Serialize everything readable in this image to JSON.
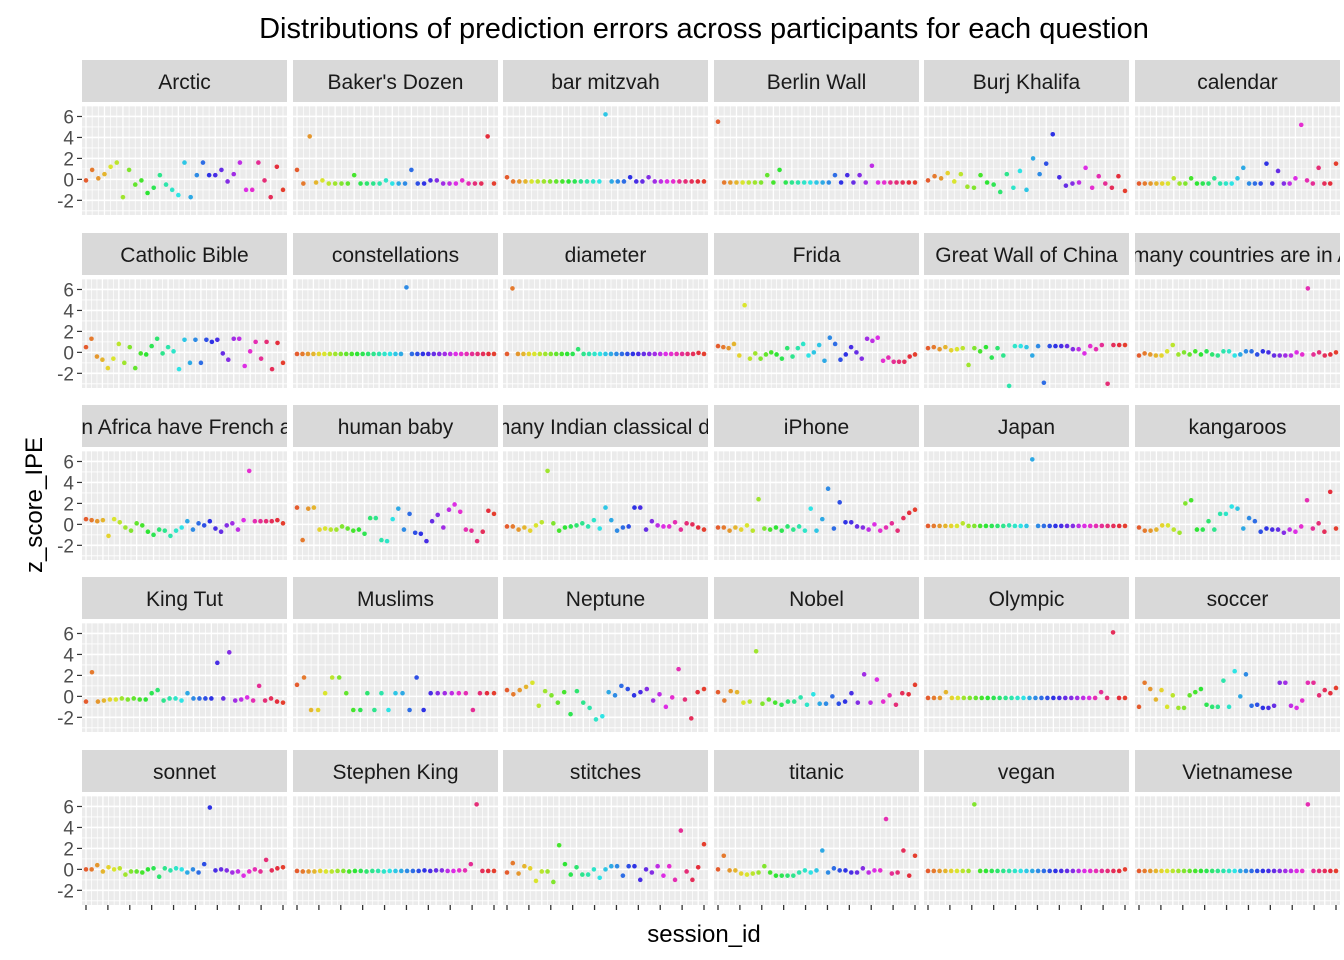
{
  "chart_data": {
    "type": "scatter",
    "title": "Distributions of prediction errors across participants for each question",
    "xlabel": "session_id",
    "ylabel": "z_score_IPE",
    "y_ticks": [
      6,
      4,
      2,
      0,
      -2
    ],
    "y_tick_labels": [
      "6",
      "4",
      "2",
      "0",
      "-2"
    ],
    "ylim": [
      -3.4,
      7.0
    ],
    "grid": true,
    "legend": "none",
    "facet_columns": 6,
    "colors": {
      "panel_bg": "#ebebeb",
      "grid": "#ffffff",
      "strip_bg": "#d9d9d9",
      "point_palette_start": "#f8766d",
      "point_palette_end": "#ff61c3"
    },
    "panels": [
      {
        "label": "Arctic",
        "y": [
          -0.1,
          0.9,
          0.1,
          0.5,
          1.2,
          1.6,
          -1.7,
          0.9,
          -0.5,
          -0.1,
          -1.3,
          -0.8,
          0.4,
          -0.5,
          -1.0,
          -1.5,
          1.6,
          -1.7,
          0.4,
          1.6,
          0.4,
          0.4,
          0.9,
          -0.2,
          0.5,
          1.6,
          -1.0,
          -1.0,
          1.6,
          -0.1,
          -1.7,
          1.2,
          -1.0
        ]
      },
      {
        "label": "Baker's Dozen",
        "y": [
          0.9,
          -0.4,
          4.1,
          -0.3,
          -0.1,
          -0.4,
          -0.4,
          -0.4,
          -0.4,
          0.4,
          -0.4,
          -0.4,
          -0.4,
          -0.4,
          -0.1,
          -0.4,
          -0.4,
          -0.4,
          0.9,
          -0.4,
          -0.4,
          -0.1,
          -0.1,
          -0.4,
          -0.4,
          -0.4,
          -0.1,
          -0.4,
          -0.4,
          -0.4,
          4.1,
          -0.4
        ]
      },
      {
        "label": "bar mitzvah",
        "y": [
          0.2,
          -0.2,
          -0.2,
          -0.2,
          -0.2,
          -0.2,
          -0.2,
          -0.2,
          -0.2,
          -0.2,
          -0.2,
          -0.2,
          -0.2,
          -0.2,
          -0.2,
          -0.2,
          6.2,
          -0.2,
          -0.2,
          -0.2,
          0.2,
          -0.2,
          -0.2,
          0.2,
          -0.2,
          -0.2,
          -0.2,
          -0.2,
          -0.2,
          -0.2,
          -0.2,
          -0.2,
          -0.2
        ]
      },
      {
        "label": "Berlin Wall",
        "y": [
          5.5,
          -0.3,
          -0.3,
          -0.3,
          -0.3,
          -0.3,
          -0.3,
          -0.3,
          0.4,
          -0.3,
          0.9,
          -0.3,
          -0.3,
          -0.3,
          -0.3,
          -0.3,
          -0.3,
          -0.3,
          -0.3,
          0.4,
          -0.3,
          0.4,
          -0.3,
          0.4,
          -0.3,
          1.3,
          -0.3,
          -0.3,
          -0.3,
          -0.3,
          -0.3,
          -0.3,
          -0.3
        ]
      },
      {
        "label": "Burj Khalifa",
        "y": [
          -0.1,
          0.3,
          0.1,
          0.6,
          -0.2,
          0.5,
          -0.7,
          -0.8,
          0.4,
          -0.3,
          -0.5,
          -1.2,
          0.5,
          -0.8,
          0.8,
          -1.0,
          2.0,
          0.5,
          1.5,
          4.3,
          0.2,
          -0.6,
          -0.4,
          -0.3,
          1.1,
          -0.8,
          0.3,
          -0.4,
          -0.8,
          0.3,
          -1.1
        ]
      },
      {
        "label": "calendar",
        "y": [
          -0.4,
          -0.4,
          -0.4,
          -0.4,
          -0.4,
          -0.4,
          0.1,
          -0.4,
          -0.4,
          0.1,
          -0.4,
          -0.4,
          -0.4,
          0.1,
          -0.4,
          -0.4,
          -0.4,
          0.1,
          1.1,
          -0.4,
          -0.4,
          -0.4,
          1.5,
          -0.4,
          0.8,
          -0.4,
          -0.4,
          0.1,
          5.2,
          -0.1,
          -0.4,
          1.1,
          -0.4,
          -0.4,
          1.5
        ]
      },
      {
        "label": "Catholic Bible",
        "y": [
          0.5,
          1.3,
          -0.4,
          -0.7,
          -1.5,
          -0.6,
          0.8,
          -1.0,
          0.5,
          -1.5,
          -0.1,
          -0.2,
          0.6,
          1.3,
          -0.1,
          0.5,
          0.1,
          -1.6,
          1.2,
          -1.0,
          1.2,
          -1.0,
          1.2,
          1.0,
          1.2,
          -0.1,
          -0.7,
          1.3,
          1.3,
          -1.3,
          0.1,
          1.0,
          -0.6,
          1.0,
          -1.6,
          0.9,
          -1.0
        ]
      },
      {
        "label": "constellations",
        "y": [
          -0.15,
          -0.15,
          -0.15,
          -0.15,
          -0.15,
          -0.15,
          -0.15,
          -0.15,
          -0.15,
          -0.15,
          -0.15,
          -0.15,
          -0.15,
          -0.15,
          -0.15,
          -0.15,
          -0.15,
          -0.15,
          -0.15,
          -0.15,
          6.2,
          -0.15,
          -0.15,
          -0.15,
          -0.15,
          -0.15,
          -0.15,
          -0.15,
          -0.15,
          -0.15,
          -0.15,
          -0.15,
          -0.15,
          -0.15,
          -0.15,
          -0.15,
          -0.15
        ]
      },
      {
        "label": "diameter",
        "y": [
          -0.15,
          6.1,
          -0.15,
          -0.15,
          -0.15,
          -0.15,
          -0.15,
          -0.15,
          -0.15,
          -0.15,
          -0.15,
          -0.15,
          -0.15,
          0.3,
          -0.15,
          -0.15,
          -0.15,
          -0.15,
          -0.15,
          -0.15,
          -0.15,
          -0.15,
          -0.15,
          -0.15,
          -0.15,
          -0.15,
          -0.15,
          -0.15,
          -0.15,
          -0.15,
          -0.15,
          -0.15,
          -0.15,
          -0.15,
          -0.15,
          -0.05,
          -0.15
        ]
      },
      {
        "label": "Frida",
        "y": [
          0.6,
          0.5,
          0.4,
          0.8,
          -0.3,
          4.5,
          -0.6,
          -0.1,
          -0.6,
          -0.2,
          0.0,
          -0.2,
          -0.6,
          0.4,
          -0.4,
          0.4,
          0.8,
          -0.3,
          0.0,
          0.7,
          -0.8,
          1.4,
          0.8,
          -0.7,
          -0.2,
          0.5,
          0.0,
          -0.6,
          1.3,
          1.1,
          1.4,
          -0.8,
          -0.5,
          -0.9,
          -0.9,
          -0.9,
          -0.4,
          -0.2
        ]
      },
      {
        "label": "Great Wall of China",
        "y": [
          0.4,
          0.5,
          0.3,
          0.5,
          0.2,
          0.3,
          0.4,
          -1.2,
          0.4,
          0.1,
          0.5,
          -0.5,
          0.4,
          -0.3,
          -3.2,
          0.6,
          0.6,
          0.5,
          -0.3,
          0.6,
          -2.9,
          0.6,
          0.6,
          0.6,
          0.6,
          0.3,
          0.3,
          -0.1,
          0.6,
          0.3,
          0.7,
          -3.0,
          0.7,
          0.7,
          0.7
        ]
      },
      {
        "label": "How many countries are in Africa",
        "y": [
          -0.3,
          -0.1,
          -0.2,
          -0.3,
          -0.3,
          0.1,
          0.7,
          -0.2,
          0.0,
          -0.2,
          0.1,
          -0.2,
          0.1,
          -0.2,
          -0.3,
          0.1,
          0.1,
          -0.3,
          -0.2,
          0.1,
          0.1,
          -0.2,
          0.1,
          0.0,
          -0.3,
          -0.3,
          -0.3,
          -0.3,
          0.0,
          -0.2,
          6.1,
          -0.2,
          0.0,
          -0.3,
          -0.2,
          0.0
        ]
      },
      {
        "label": "How many countries in Africa have French as an official language",
        "y": [
          0.5,
          0.4,
          0.3,
          0.4,
          -1.1,
          0.5,
          0.2,
          -0.3,
          -0.6,
          0.1,
          -0.1,
          -0.7,
          -1.0,
          -0.5,
          -0.6,
          -1.1,
          -0.6,
          -0.3,
          0.3,
          -0.5,
          0.1,
          -0.1,
          0.3,
          -0.4,
          -0.7,
          -0.1,
          0.1,
          -0.5,
          0.4,
          5.1,
          0.3,
          0.3,
          0.3,
          0.3,
          0.4,
          0.1
        ]
      },
      {
        "label": "human baby",
        "y": [
          1.6,
          -1.5,
          1.5,
          1.6,
          -0.5,
          -0.4,
          -0.5,
          -0.5,
          -0.2,
          -0.4,
          -0.6,
          -0.5,
          -0.9,
          0.6,
          0.6,
          -1.5,
          -1.6,
          0.5,
          1.5,
          -0.5,
          1.0,
          -0.8,
          -0.9,
          -1.6,
          0.3,
          0.9,
          -0.3,
          1.4,
          1.9,
          1.2,
          -0.5,
          -0.6,
          -1.6,
          -0.7,
          1.3,
          1.0
        ]
      },
      {
        "label": "How many Indian classical dances",
        "y": [
          -0.2,
          -0.2,
          -0.5,
          -0.3,
          -0.6,
          -0.1,
          0.2,
          5.1,
          0.1,
          -0.6,
          -0.3,
          -0.2,
          -0.1,
          0.1,
          -0.2,
          0.4,
          -0.4,
          1.6,
          0.4,
          -0.6,
          -0.3,
          -0.2,
          1.6,
          1.6,
          -0.5,
          0.3,
          -0.1,
          -0.2,
          -0.2,
          0.2,
          -0.5,
          0.1,
          0.0,
          -0.3,
          -0.5
        ]
      },
      {
        "label": "iPhone",
        "y": [
          -0.3,
          -0.3,
          -0.6,
          -0.3,
          -0.5,
          -0.1,
          -0.6,
          2.4,
          -0.4,
          -0.5,
          -0.3,
          -0.6,
          -0.2,
          -0.5,
          -0.2,
          -0.6,
          1.5,
          -0.6,
          0.5,
          3.4,
          -0.4,
          2.1,
          0.2,
          0.2,
          -0.2,
          -0.3,
          -0.5,
          0.0,
          -0.6,
          -0.3,
          0.1,
          -0.6,
          0.6,
          1.1,
          1.4
        ]
      },
      {
        "label": "Japan",
        "y": [
          -0.15,
          -0.15,
          -0.15,
          -0.15,
          -0.15,
          -0.15,
          0.1,
          -0.15,
          -0.15,
          -0.15,
          -0.15,
          -0.15,
          -0.15,
          -0.15,
          -0.1,
          -0.15,
          -0.15,
          -0.15,
          6.2,
          -0.15,
          -0.15,
          -0.15,
          -0.15,
          -0.15,
          -0.15,
          -0.15,
          -0.15,
          -0.15,
          -0.15,
          -0.15,
          -0.15,
          -0.15,
          -0.15,
          -0.15,
          -0.15
        ]
      },
      {
        "label": "kangaroos",
        "y": [
          -0.3,
          -0.6,
          -0.6,
          -0.5,
          -0.1,
          -0.1,
          -0.5,
          -0.8,
          2.0,
          2.3,
          -0.5,
          -0.5,
          0.3,
          -0.5,
          1.0,
          1.0,
          1.7,
          1.5,
          -0.4,
          0.6,
          0.3,
          -0.7,
          -0.4,
          -0.5,
          -0.5,
          -0.8,
          -0.5,
          -0.7,
          -0.2,
          2.3,
          -0.4,
          0.1,
          -0.7,
          3.1,
          -0.4
        ]
      },
      {
        "label": "King Tut",
        "y": [
          -0.5,
          2.3,
          -0.5,
          -0.4,
          -0.3,
          -0.3,
          -0.2,
          -0.3,
          -0.2,
          -0.3,
          -0.3,
          0.3,
          0.6,
          -0.4,
          -0.2,
          -0.2,
          -0.4,
          0.3,
          -0.2,
          -0.2,
          -0.2,
          -0.2,
          3.2,
          -0.2,
          4.2,
          -0.4,
          -0.3,
          -0.1,
          -0.4,
          1.0,
          -0.4,
          -0.2,
          -0.5,
          -0.6
        ]
      },
      {
        "label": "Muslims",
        "y": [
          1.1,
          1.8,
          -1.3,
          -1.3,
          0.3,
          1.8,
          1.8,
          0.3,
          -1.3,
          -1.3,
          0.3,
          -1.3,
          0.3,
          -1.3,
          0.3,
          0.3,
          -1.3,
          1.8,
          -1.3,
          0.3,
          0.3,
          0.3,
          0.3,
          0.3,
          0.3,
          -1.3,
          0.3,
          0.3,
          0.3
        ]
      },
      {
        "label": "Neptune",
        "y": [
          0.6,
          0.2,
          0.6,
          0.9,
          1.3,
          -0.9,
          0.5,
          0.1,
          -0.6,
          0.4,
          -1.7,
          0.5,
          -0.6,
          -1.1,
          -2.2,
          -1.9,
          0.4,
          0.1,
          1.0,
          0.7,
          0.1,
          0.4,
          0.7,
          -0.4,
          0.2,
          -1.0,
          -0.1,
          2.6,
          -0.3,
          -2.1,
          0.4,
          0.7
        ]
      },
      {
        "label": "Nobel",
        "y": [
          0.4,
          -0.4,
          0.5,
          0.4,
          -0.6,
          -0.5,
          4.3,
          -0.7,
          -0.3,
          -0.6,
          -0.8,
          -0.5,
          -0.5,
          -0.1,
          -0.8,
          0.2,
          -0.7,
          -0.7,
          0.0,
          -0.7,
          -0.5,
          0.3,
          -0.6,
          2.1,
          -0.6,
          1.6,
          -0.5,
          0.1,
          -0.8,
          0.3,
          0.2,
          1.1
        ]
      },
      {
        "label": "Olympic",
        "y": [
          -0.15,
          -0.15,
          -0.15,
          0.4,
          -0.15,
          -0.15,
          -0.15,
          -0.15,
          -0.15,
          -0.15,
          -0.15,
          -0.15,
          -0.15,
          -0.15,
          -0.15,
          -0.15,
          -0.15,
          -0.15,
          -0.15,
          -0.15,
          -0.15,
          -0.15,
          -0.15,
          -0.15,
          -0.15,
          -0.15,
          -0.15,
          -0.15,
          -0.15,
          0.4,
          -0.15,
          6.1,
          -0.15,
          -0.15
        ]
      },
      {
        "label": "soccer",
        "y": [
          -1.0,
          1.3,
          0.7,
          -0.3,
          0.6,
          -1.0,
          0.1,
          -1.1,
          -1.1,
          0.1,
          0.4,
          0.7,
          -0.8,
          -1.0,
          -1.0,
          1.5,
          -1.0,
          2.4,
          0.0,
          2.1,
          -0.9,
          -0.8,
          -1.1,
          -1.1,
          -0.9,
          1.3,
          1.3,
          -0.9,
          -1.1,
          -0.4,
          1.3,
          1.3,
          0.1,
          0.6,
          0.3,
          0.8
        ]
      },
      {
        "label": "sonnet",
        "y": [
          0.0,
          0.0,
          0.4,
          -0.2,
          0.2,
          0.0,
          0.1,
          -0.5,
          -0.2,
          -0.2,
          -0.3,
          0.0,
          0.1,
          -0.7,
          0.1,
          -0.1,
          0.1,
          0.0,
          -0.3,
          0.0,
          -0.3,
          0.5,
          5.9,
          -0.1,
          0.0,
          -0.1,
          -0.3,
          -0.2,
          -0.6,
          -0.2,
          0.0,
          -0.2,
          0.9,
          -0.1,
          0.1,
          0.2
        ]
      },
      {
        "label": "Stephen King",
        "y": [
          -0.15,
          -0.2,
          -0.2,
          -0.2,
          -0.15,
          -0.2,
          -0.2,
          -0.15,
          -0.15,
          -0.2,
          -0.15,
          -0.15,
          -0.2,
          -0.15,
          -0.15,
          -0.2,
          -0.15,
          -0.15,
          -0.15,
          -0.15,
          -0.15,
          -0.15,
          -0.1,
          -0.15,
          -0.1,
          -0.1,
          -0.15,
          -0.15,
          -0.1,
          -0.1,
          0.5,
          6.2,
          -0.15,
          -0.15,
          -0.15
        ]
      },
      {
        "label": "stitches",
        "y": [
          -0.3,
          0.6,
          -0.4,
          0.3,
          0.1,
          -1.1,
          -0.2,
          -0.2,
          -1.2,
          2.3,
          0.5,
          -0.5,
          0.2,
          -0.5,
          -0.5,
          0.0,
          -0.8,
          0.0,
          0.3,
          0.3,
          -0.6,
          0.3,
          0.3,
          -1.0,
          0.0,
          -0.3,
          0.3,
          -0.6,
          0.3,
          -1.0,
          3.7,
          -0.2,
          -1.0,
          0.2,
          2.4
        ]
      },
      {
        "label": "titanic",
        "y": [
          0.0,
          1.3,
          -0.1,
          -0.1,
          -0.4,
          -0.5,
          -0.4,
          -0.3,
          0.3,
          -0.3,
          -0.6,
          -0.6,
          -0.6,
          -0.6,
          -0.3,
          -0.1,
          -0.3,
          -0.1,
          1.8,
          -0.3,
          0.1,
          -0.1,
          -0.1,
          -0.3,
          -0.3,
          0.1,
          -0.3,
          -0.1,
          -0.1,
          4.8,
          -0.4,
          -0.3,
          1.8,
          -0.6,
          1.3
        ]
      },
      {
        "label": "vegan",
        "y": [
          -0.15,
          -0.15,
          -0.15,
          -0.15,
          -0.15,
          -0.15,
          -0.15,
          -0.15,
          6.2,
          -0.15,
          -0.15,
          -0.15,
          -0.15,
          -0.15,
          -0.15,
          -0.15,
          -0.15,
          -0.15,
          -0.15,
          -0.15,
          -0.15,
          -0.15,
          -0.15,
          -0.15,
          -0.15,
          -0.15,
          -0.15,
          -0.15,
          -0.15,
          -0.15,
          -0.15,
          -0.15,
          -0.15,
          -0.15,
          0.0
        ]
      },
      {
        "label": "Vietnamese",
        "y": [
          -0.15,
          -0.15,
          -0.15,
          -0.15,
          -0.15,
          -0.15,
          -0.15,
          -0.15,
          -0.15,
          -0.15,
          -0.15,
          -0.15,
          -0.15,
          -0.15,
          -0.15,
          -0.15,
          -0.15,
          -0.15,
          -0.15,
          -0.15,
          -0.15,
          -0.15,
          -0.15,
          -0.15,
          -0.15,
          -0.15,
          -0.15,
          -0.15,
          -0.15,
          -0.15,
          6.2,
          -0.15,
          -0.15,
          -0.15,
          -0.15,
          -0.15
        ]
      }
    ]
  }
}
